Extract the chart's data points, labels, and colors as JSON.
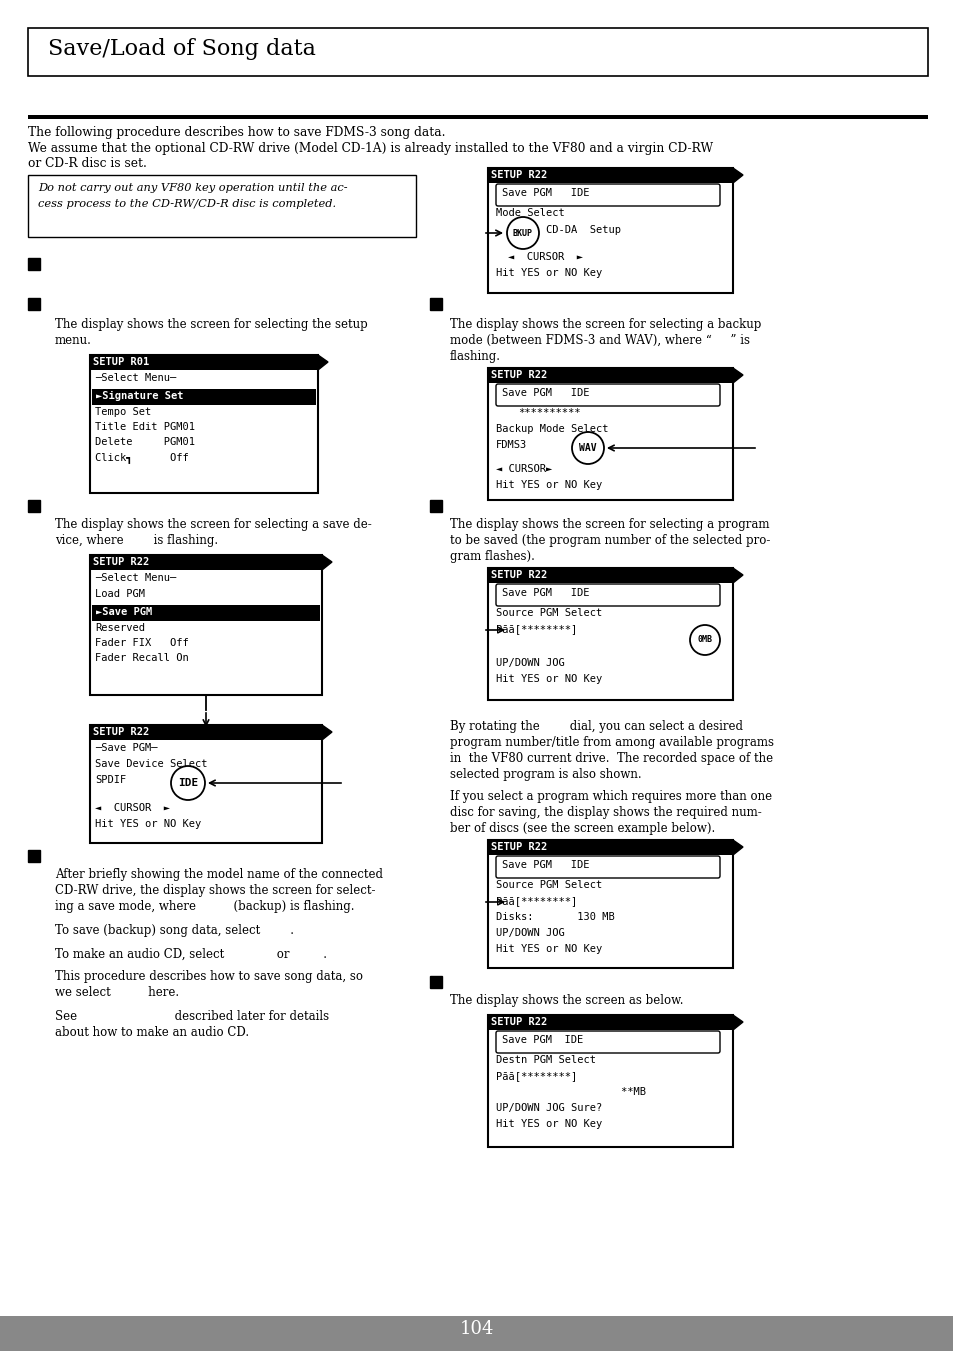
{
  "title": "Save/Load of Song data",
  "bg_color": "#ffffff",
  "page_number": "104",
  "intro_line1": "The following procedure describes how to save FDMS-3 song data.",
  "intro_line2": "We assume that the optional CD-RW drive (Model CD-1A) is already installed to the VF80 and a virgin CD-RW",
  "intro_line3": "or CD-R disc is set."
}
